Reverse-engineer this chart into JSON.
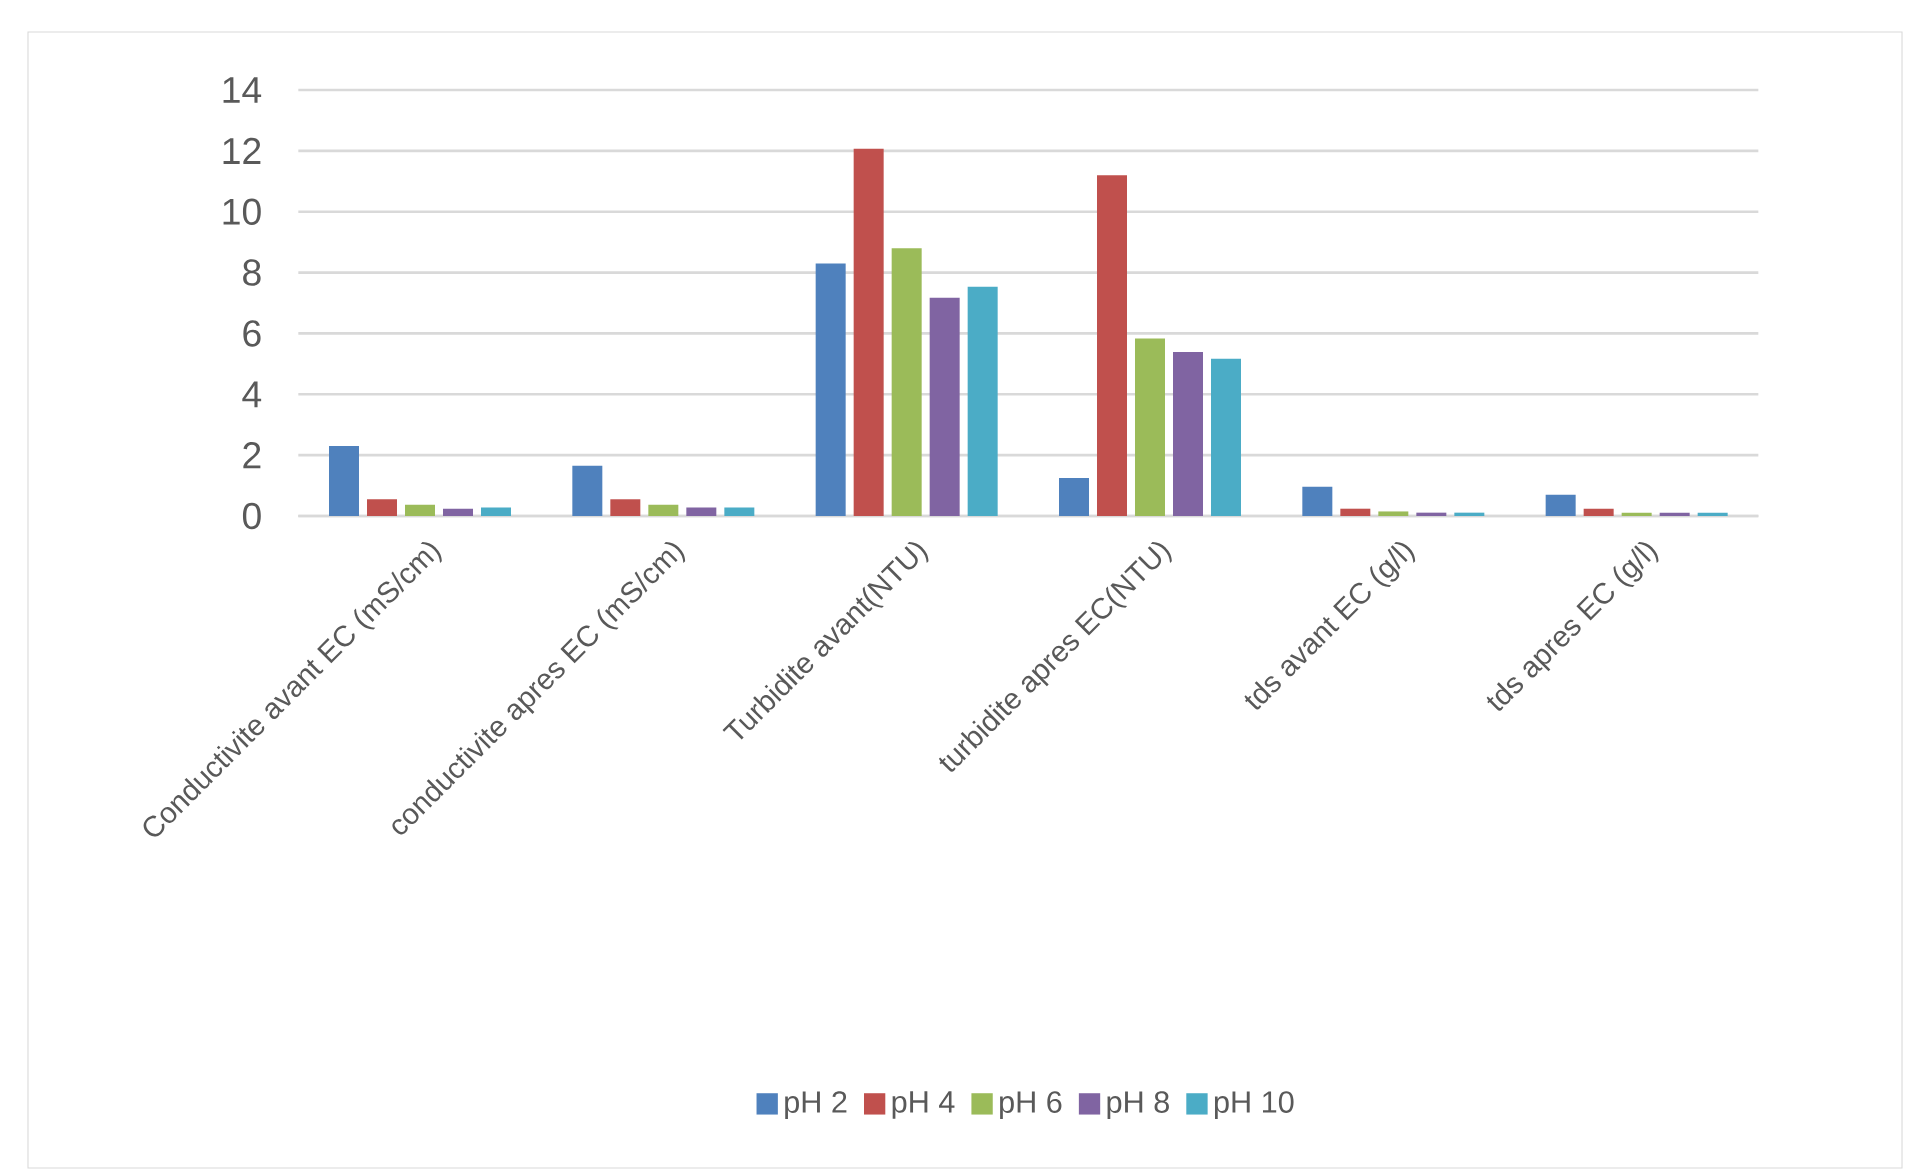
{
  "chart_data": {
    "type": "bar",
    "categories": [
      "Conductivite avant EC (mS/cm)",
      "conductivite apres EC (mS/cm)",
      "Turbidite avant(NTU)",
      "turbidite apres EC(NTU)",
      "tds avant EC (g/l)",
      "tds apres EC (g/l)"
    ],
    "series": [
      {
        "name": "pH 2",
        "color": "#4f81bd",
        "values": [
          2.3,
          1.65,
          8.3,
          1.25,
          0.96,
          0.7
        ]
      },
      {
        "name": "pH 4",
        "color": "#c0504d",
        "values": [
          0.55,
          0.55,
          12.07,
          11.2,
          0.24,
          0.24
        ]
      },
      {
        "name": "pH 6",
        "color": "#9bbb59",
        "values": [
          0.37,
          0.37,
          8.8,
          5.83,
          0.15,
          0.11
        ]
      },
      {
        "name": "pH 8",
        "color": "#8064a2",
        "values": [
          0.24,
          0.28,
          7.17,
          5.39,
          0.11,
          0.11
        ]
      },
      {
        "name": "pH 10",
        "color": "#4bacc6",
        "values": [
          0.28,
          0.28,
          7.54,
          5.17,
          0.11,
          0.11
        ]
      }
    ],
    "ylim": [
      0,
      14
    ],
    "yticks": [
      0,
      2,
      4,
      6,
      8,
      10,
      12,
      14
    ],
    "grid": "y",
    "legend": "bottom"
  }
}
